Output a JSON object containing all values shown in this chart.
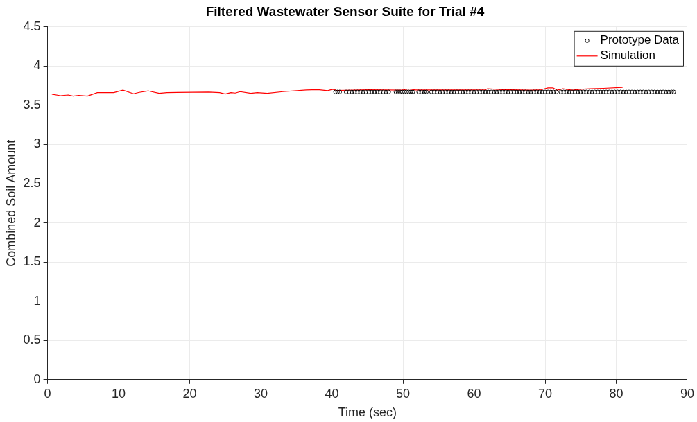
{
  "chart_data": {
    "type": "scatter",
    "title": "Filtered Wastewater Sensor Suite for Trial #4",
    "xlabel": "Time (sec)",
    "ylabel": "Combined Soil Amount",
    "xlim": [
      0,
      90
    ],
    "xticks": [
      0,
      10,
      20,
      30,
      40,
      50,
      60,
      70,
      80,
      90
    ],
    "ylim": [
      0,
      4.5
    ],
    "yticks": [
      0,
      0.5,
      1,
      1.5,
      2,
      2.5,
      3,
      3.5,
      4,
      4.5
    ],
    "grid": true,
    "legend": "top right",
    "series": [
      {
        "name": "Prototype Data",
        "type": "scatter",
        "marker": "circle",
        "color": "#000000",
        "x": [
          40.5,
          40.8,
          41.1,
          42.0,
          42.4,
          42.8,
          43.2,
          43.6,
          44.0,
          44.4,
          44.8,
          45.2,
          45.6,
          46.0,
          46.4,
          46.8,
          47.2,
          47.6,
          48.0,
          49.0,
          49.3,
          49.6,
          49.9,
          50.2,
          50.5,
          50.8,
          51.1,
          51.4,
          52.2,
          52.6,
          53.0,
          53.3,
          54.0,
          54.4,
          54.8,
          55.2,
          55.6,
          56.0,
          56.4,
          56.8,
          57.2,
          57.6,
          58.0,
          58.4,
          58.8,
          59.2,
          59.6,
          60.0,
          60.4,
          60.8,
          61.2,
          61.6,
          62.0,
          62.4,
          62.8,
          63.2,
          63.6,
          64.0,
          64.4,
          64.8,
          65.2,
          65.6,
          66.0,
          66.4,
          66.8,
          67.2,
          67.6,
          68.0,
          68.4,
          68.8,
          69.2,
          69.6,
          70.0,
          70.4,
          70.8,
          71.2,
          71.6,
          72.2,
          72.6,
          73.0,
          73.4,
          73.8,
          74.2,
          74.6,
          75.0,
          75.4,
          75.8,
          76.2,
          76.6,
          77.0,
          77.4,
          77.8,
          78.2,
          78.6,
          79.0,
          79.4,
          79.8,
          80.2,
          80.6,
          81.0,
          81.4,
          81.8,
          82.2,
          82.6,
          83.0,
          83.4,
          83.8,
          84.2,
          84.6,
          85.0,
          85.4,
          85.8,
          86.2,
          86.6,
          87.0,
          87.4,
          87.8,
          88.1
        ],
        "values": [
          3.67,
          3.67,
          3.67,
          3.67,
          3.67,
          3.67,
          3.67,
          3.67,
          3.67,
          3.67,
          3.67,
          3.67,
          3.67,
          3.67,
          3.67,
          3.67,
          3.67,
          3.67,
          3.67,
          3.67,
          3.67,
          3.67,
          3.67,
          3.67,
          3.67,
          3.67,
          3.67,
          3.67,
          3.67,
          3.67,
          3.67,
          3.67,
          3.67,
          3.67,
          3.67,
          3.67,
          3.67,
          3.67,
          3.67,
          3.67,
          3.67,
          3.67,
          3.67,
          3.67,
          3.67,
          3.67,
          3.67,
          3.67,
          3.67,
          3.67,
          3.67,
          3.67,
          3.67,
          3.67,
          3.67,
          3.67,
          3.67,
          3.67,
          3.67,
          3.67,
          3.67,
          3.67,
          3.67,
          3.67,
          3.67,
          3.67,
          3.67,
          3.67,
          3.67,
          3.67,
          3.67,
          3.67,
          3.67,
          3.67,
          3.67,
          3.67,
          3.67,
          3.67,
          3.67,
          3.67,
          3.67,
          3.67,
          3.67,
          3.67,
          3.67,
          3.67,
          3.67,
          3.67,
          3.67,
          3.67,
          3.67,
          3.67,
          3.67,
          3.67,
          3.67,
          3.67,
          3.67,
          3.67,
          3.67,
          3.67,
          3.67,
          3.67,
          3.67,
          3.67,
          3.67,
          3.67,
          3.67,
          3.67,
          3.67,
          3.67,
          3.67,
          3.67,
          3.67,
          3.67,
          3.67,
          3.67,
          3.67,
          3.67
        ]
      },
      {
        "name": "Simulation",
        "type": "line",
        "marker": "none",
        "color": "#ff0000",
        "x": [
          0.6,
          1.8,
          2.9,
          3.6,
          4.4,
          5.6,
          7.0,
          9.3,
          10.6,
          12.1,
          12.9,
          14.2,
          15.7,
          16.8,
          22.7,
          24.2,
          25.0,
          25.8,
          26.4,
          27.1,
          28.6,
          29.5,
          30.9,
          33.1,
          36.4,
          38.0,
          39.4,
          40.1,
          40.7,
          45.2,
          49.8,
          50.8,
          51.8,
          55.0,
          58.3,
          61.6,
          61.9,
          63.9,
          68.1,
          69.4,
          70.4,
          71.1,
          71.7,
          72.5,
          73.8,
          75.0,
          76.3,
          78.2,
          80.9
        ],
        "values": [
          3.641,
          3.623,
          3.632,
          3.617,
          3.626,
          3.617,
          3.662,
          3.662,
          3.692,
          3.647,
          3.665,
          3.683,
          3.653,
          3.662,
          3.668,
          3.662,
          3.644,
          3.662,
          3.656,
          3.674,
          3.653,
          3.662,
          3.653,
          3.674,
          3.695,
          3.7,
          3.686,
          3.704,
          3.689,
          3.698,
          3.692,
          3.707,
          3.695,
          3.695,
          3.695,
          3.698,
          3.71,
          3.7,
          3.692,
          3.698,
          3.722,
          3.722,
          3.692,
          3.71,
          3.692,
          3.704,
          3.71,
          3.716,
          3.728
        ]
      }
    ]
  }
}
